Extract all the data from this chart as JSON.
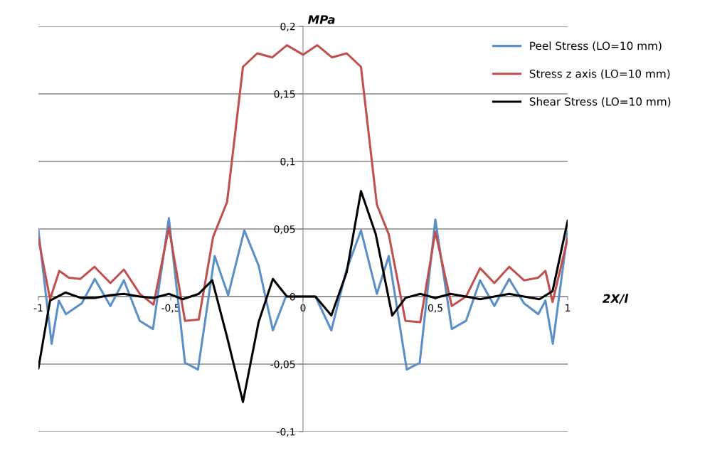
{
  "chart_data": {
    "type": "line",
    "xlabel": "2X/l",
    "ylabel": "MPa",
    "xlim": [
      -1,
      1
    ],
    "ylim": [
      -0.1,
      0.2
    ],
    "xticks": [
      {
        "value": -1,
        "label": "-1"
      },
      {
        "value": -0.5,
        "label": "-0,5"
      },
      {
        "value": 0,
        "label": "0"
      },
      {
        "value": 0.5,
        "label": "0,5"
      },
      {
        "value": 1,
        "label": "1"
      }
    ],
    "yticks": [
      {
        "value": -0.1,
        "label": "-0,1"
      },
      {
        "value": -0.05,
        "label": "-0,05"
      },
      {
        "value": 0,
        "label": "0"
      },
      {
        "value": 0.05,
        "label": "0,05"
      },
      {
        "value": 0.1,
        "label": "0,1"
      },
      {
        "value": 0.15,
        "label": "0,15"
      },
      {
        "value": 0.2,
        "label": "0,2"
      }
    ],
    "grid": "y",
    "legend": "top right",
    "marker": "none",
    "line_style": "solid",
    "series": [
      {
        "name": "Peel Stress (LO=10 mm)",
        "color": "#5b8fc7",
        "x": [
          -1,
          -0.95,
          -0.923,
          -0.896,
          -0.836,
          -0.787,
          -0.728,
          -0.677,
          -0.617,
          -0.567,
          -0.507,
          -0.446,
          -0.397,
          -0.334,
          -0.283,
          -0.222,
          -0.168,
          -0.114,
          -0.065,
          0,
          0.047,
          0.107,
          0.163,
          0.219,
          0.279,
          0.324,
          0.392,
          0.441,
          0.5,
          0.562,
          0.616,
          0.669,
          0.723,
          0.779,
          0.835,
          0.889,
          0.916,
          0.944,
          1
        ],
        "values": [
          0.049,
          -0.035,
          -0.003,
          -0.013,
          -0.005,
          0.013,
          -0.007,
          0.012,
          -0.018,
          -0.024,
          0.058,
          -0.049,
          -0.054,
          0.03,
          0.001,
          0.049,
          0.023,
          -0.025,
          0,
          0,
          0,
          -0.025,
          0.019,
          0.049,
          0.002,
          0.03,
          -0.054,
          -0.049,
          0.057,
          -0.024,
          -0.018,
          0.012,
          -0.007,
          0.013,
          -0.005,
          -0.013,
          -0.003,
          -0.035,
          0.048
        ]
      },
      {
        "name": "Stress z axis (LO=10 mm)",
        "color": "#c0504d",
        "x": [
          -1,
          -0.956,
          -0.921,
          -0.885,
          -0.842,
          -0.788,
          -0.728,
          -0.677,
          -0.617,
          -0.565,
          -0.507,
          -0.446,
          -0.394,
          -0.34,
          -0.287,
          -0.227,
          -0.173,
          -0.116,
          -0.061,
          0,
          0.054,
          0.109,
          0.165,
          0.219,
          0.279,
          0.324,
          0.387,
          0.443,
          0.5,
          0.562,
          0.616,
          0.669,
          0.723,
          0.779,
          0.835,
          0.889,
          0.916,
          0.943,
          1
        ],
        "values": [
          0.043,
          -0.002,
          0.019,
          0.014,
          0.013,
          0.022,
          0.01,
          0.02,
          0.002,
          -0.006,
          0.051,
          -0.018,
          -0.017,
          0.044,
          0.07,
          0.17,
          0.18,
          0.177,
          0.186,
          0.179,
          0.186,
          0.177,
          0.18,
          0.17,
          0.068,
          0.046,
          -0.018,
          -0.019,
          0.048,
          -0.007,
          0,
          0.021,
          0.01,
          0.022,
          0.012,
          0.014,
          0.019,
          -0.004,
          0.043
        ]
      },
      {
        "name": "Shear Stress (LO=10 mm)",
        "color": "#000000",
        "x": [
          -1,
          -0.956,
          -0.898,
          -0.84,
          -0.787,
          -0.728,
          -0.677,
          -0.617,
          -0.565,
          -0.507,
          -0.455,
          -0.394,
          -0.343,
          -0.287,
          -0.227,
          -0.168,
          -0.114,
          -0.061,
          0.047,
          0.107,
          0.165,
          0.219,
          0.275,
          0.337,
          0.387,
          0.443,
          0.5,
          0.557,
          0.616,
          0.669,
          0.723,
          0.779,
          0.835,
          0.893,
          0.943,
          1
        ],
        "values": [
          -0.053,
          -0.003,
          0.003,
          -0.001,
          -0.001,
          0.001,
          0.002,
          0,
          -0.001,
          0.002,
          -0.002,
          0.002,
          0.012,
          -0.03,
          -0.078,
          -0.019,
          0.013,
          0,
          0,
          -0.014,
          0.018,
          0.078,
          0.046,
          -0.014,
          -0.001,
          0.002,
          -0.001,
          0.002,
          0,
          -0.002,
          0,
          0.002,
          0,
          -0.002,
          0.004,
          0.056
        ]
      }
    ]
  }
}
